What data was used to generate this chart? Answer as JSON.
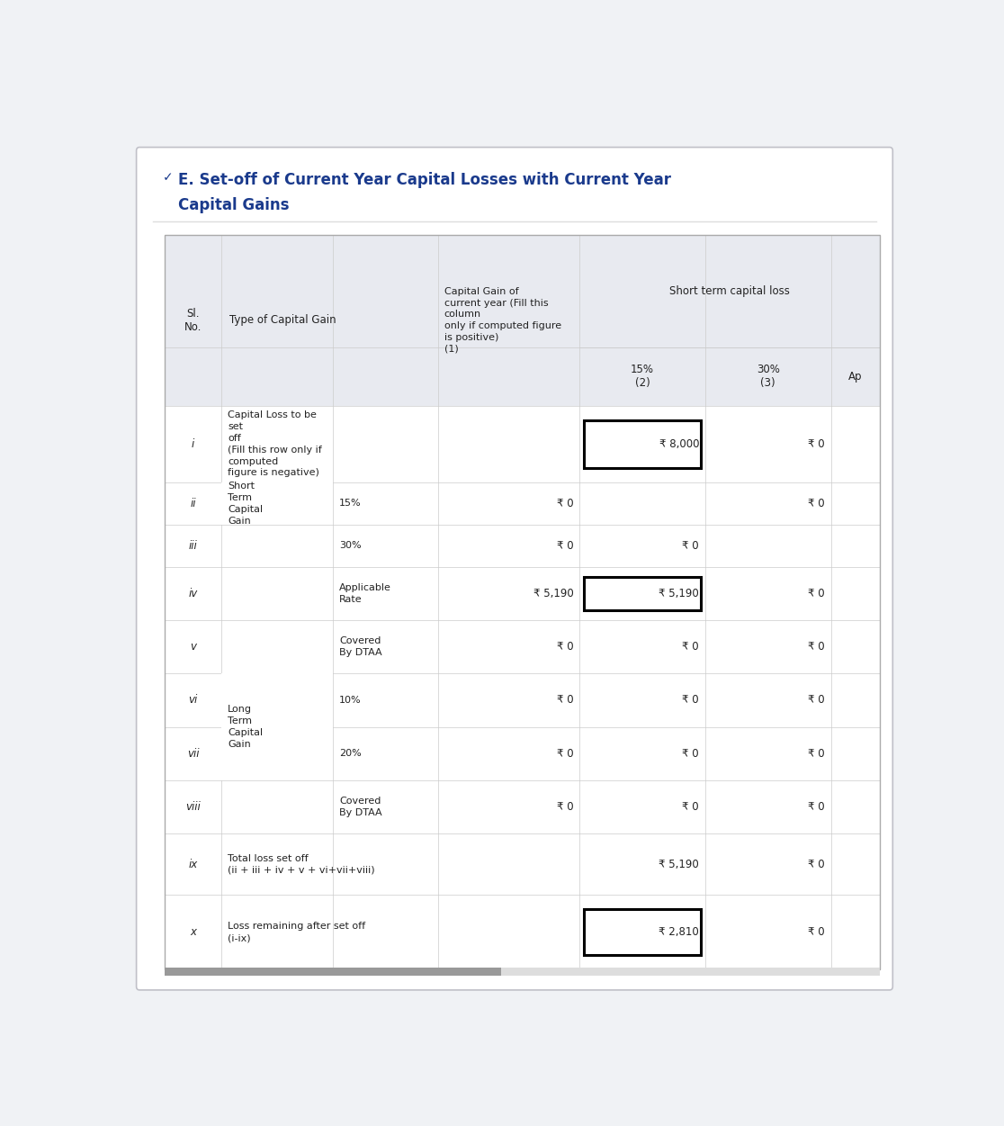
{
  "title_line1": "E. Set-off of Current Year Capital Losses with Current Year",
  "title_line2": "Capital Gains",
  "title_color": "#1a3a8c",
  "bg_color": "#f0f2f5",
  "header_bg": "#e8eaf0",
  "white": "#ffffff",
  "line_color": "#cccccc",
  "text_color": "#222222",
  "rows": [
    {
      "sl": "i",
      "type1": "Capital Loss to be\nset\noff\n(Fill this row only if\ncomputed\nfigure is negative)",
      "type2": "",
      "col_cg": "",
      "col_15": "₹ 8,000",
      "col_30": "₹ 0",
      "col_ap": "",
      "col_15_boxed": true
    },
    {
      "sl": "ii",
      "type1": "Short\nTerm\nCapital\nGain",
      "type2": "15%",
      "col_cg": "₹ 0",
      "col_15": "",
      "col_30": "₹ 0",
      "col_ap": "",
      "col_15_boxed": false
    },
    {
      "sl": "iii",
      "type1": "",
      "type2": "30%",
      "col_cg": "₹ 0",
      "col_15": "₹ 0",
      "col_30": "",
      "col_ap": "",
      "col_15_boxed": false
    },
    {
      "sl": "iv",
      "type1": "",
      "type2": "Applicable\nRate",
      "col_cg": "₹ 5,190",
      "col_15": "₹ 5,190",
      "col_30": "₹ 0",
      "col_ap": "",
      "col_15_boxed": true
    },
    {
      "sl": "v",
      "type1": "",
      "type2": "Covered\nBy DTAA",
      "col_cg": "₹ 0",
      "col_15": "₹ 0",
      "col_30": "₹ 0",
      "col_ap": "",
      "col_15_boxed": false
    },
    {
      "sl": "vi",
      "type1": "Long\nTerm\nCapital\nGain",
      "type2": "10%",
      "col_cg": "₹ 0",
      "col_15": "₹ 0",
      "col_30": "₹ 0",
      "col_ap": "",
      "col_15_boxed": false
    },
    {
      "sl": "vii",
      "type1": "",
      "type2": "20%",
      "col_cg": "₹ 0",
      "col_15": "₹ 0",
      "col_30": "₹ 0",
      "col_ap": "",
      "col_15_boxed": false
    },
    {
      "sl": "viii",
      "type1": "",
      "type2": "Covered\nBy DTAA",
      "col_cg": "₹ 0",
      "col_15": "₹ 0",
      "col_30": "₹ 0",
      "col_ap": "",
      "col_15_boxed": false
    },
    {
      "sl": "ix",
      "type1": "Total loss set off\n(ii + iii + iv + v + vi+vii+viii)",
      "type2": "",
      "col_cg": "",
      "col_15": "₹ 5,190",
      "col_30": "₹ 0",
      "col_ap": "",
      "col_15_boxed": false
    },
    {
      "sl": "x",
      "type1": "Loss remaining after set off\n(i-ix)",
      "type2": "",
      "col_cg": "",
      "col_15": "₹ 2,810",
      "col_30": "₹ 0",
      "col_ap": "",
      "col_15_boxed": true
    }
  ]
}
